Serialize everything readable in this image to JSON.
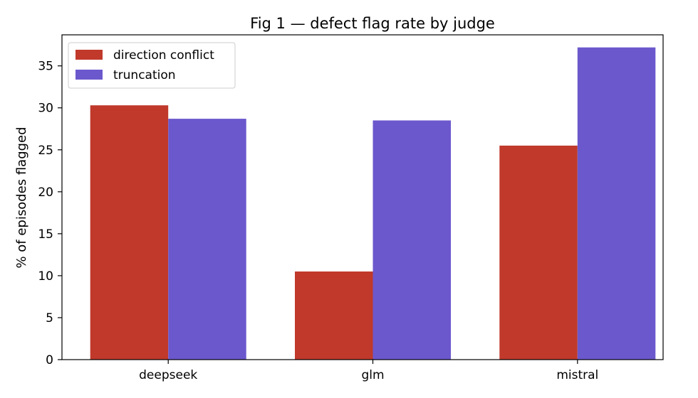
{
  "chart_data": {
    "type": "bar",
    "title": "Fig 1 — defect flag rate by judge",
    "xlabel": "",
    "ylabel": "% of episodes flagged",
    "categories": [
      "deepseek",
      "glm",
      "mistral"
    ],
    "series": [
      {
        "name": "direction conflict",
        "color": "#c0392b",
        "values": [
          30.3,
          10.5,
          25.5
        ]
      },
      {
        "name": "truncation",
        "color": "#6c58cd",
        "values": [
          28.7,
          28.5,
          37.2
        ]
      }
    ],
    "ylim": [
      0,
      38.7
    ],
    "yticks": [
      0,
      5,
      10,
      15,
      20,
      25,
      30,
      35
    ],
    "grid": false,
    "legend_position": "top-left"
  }
}
